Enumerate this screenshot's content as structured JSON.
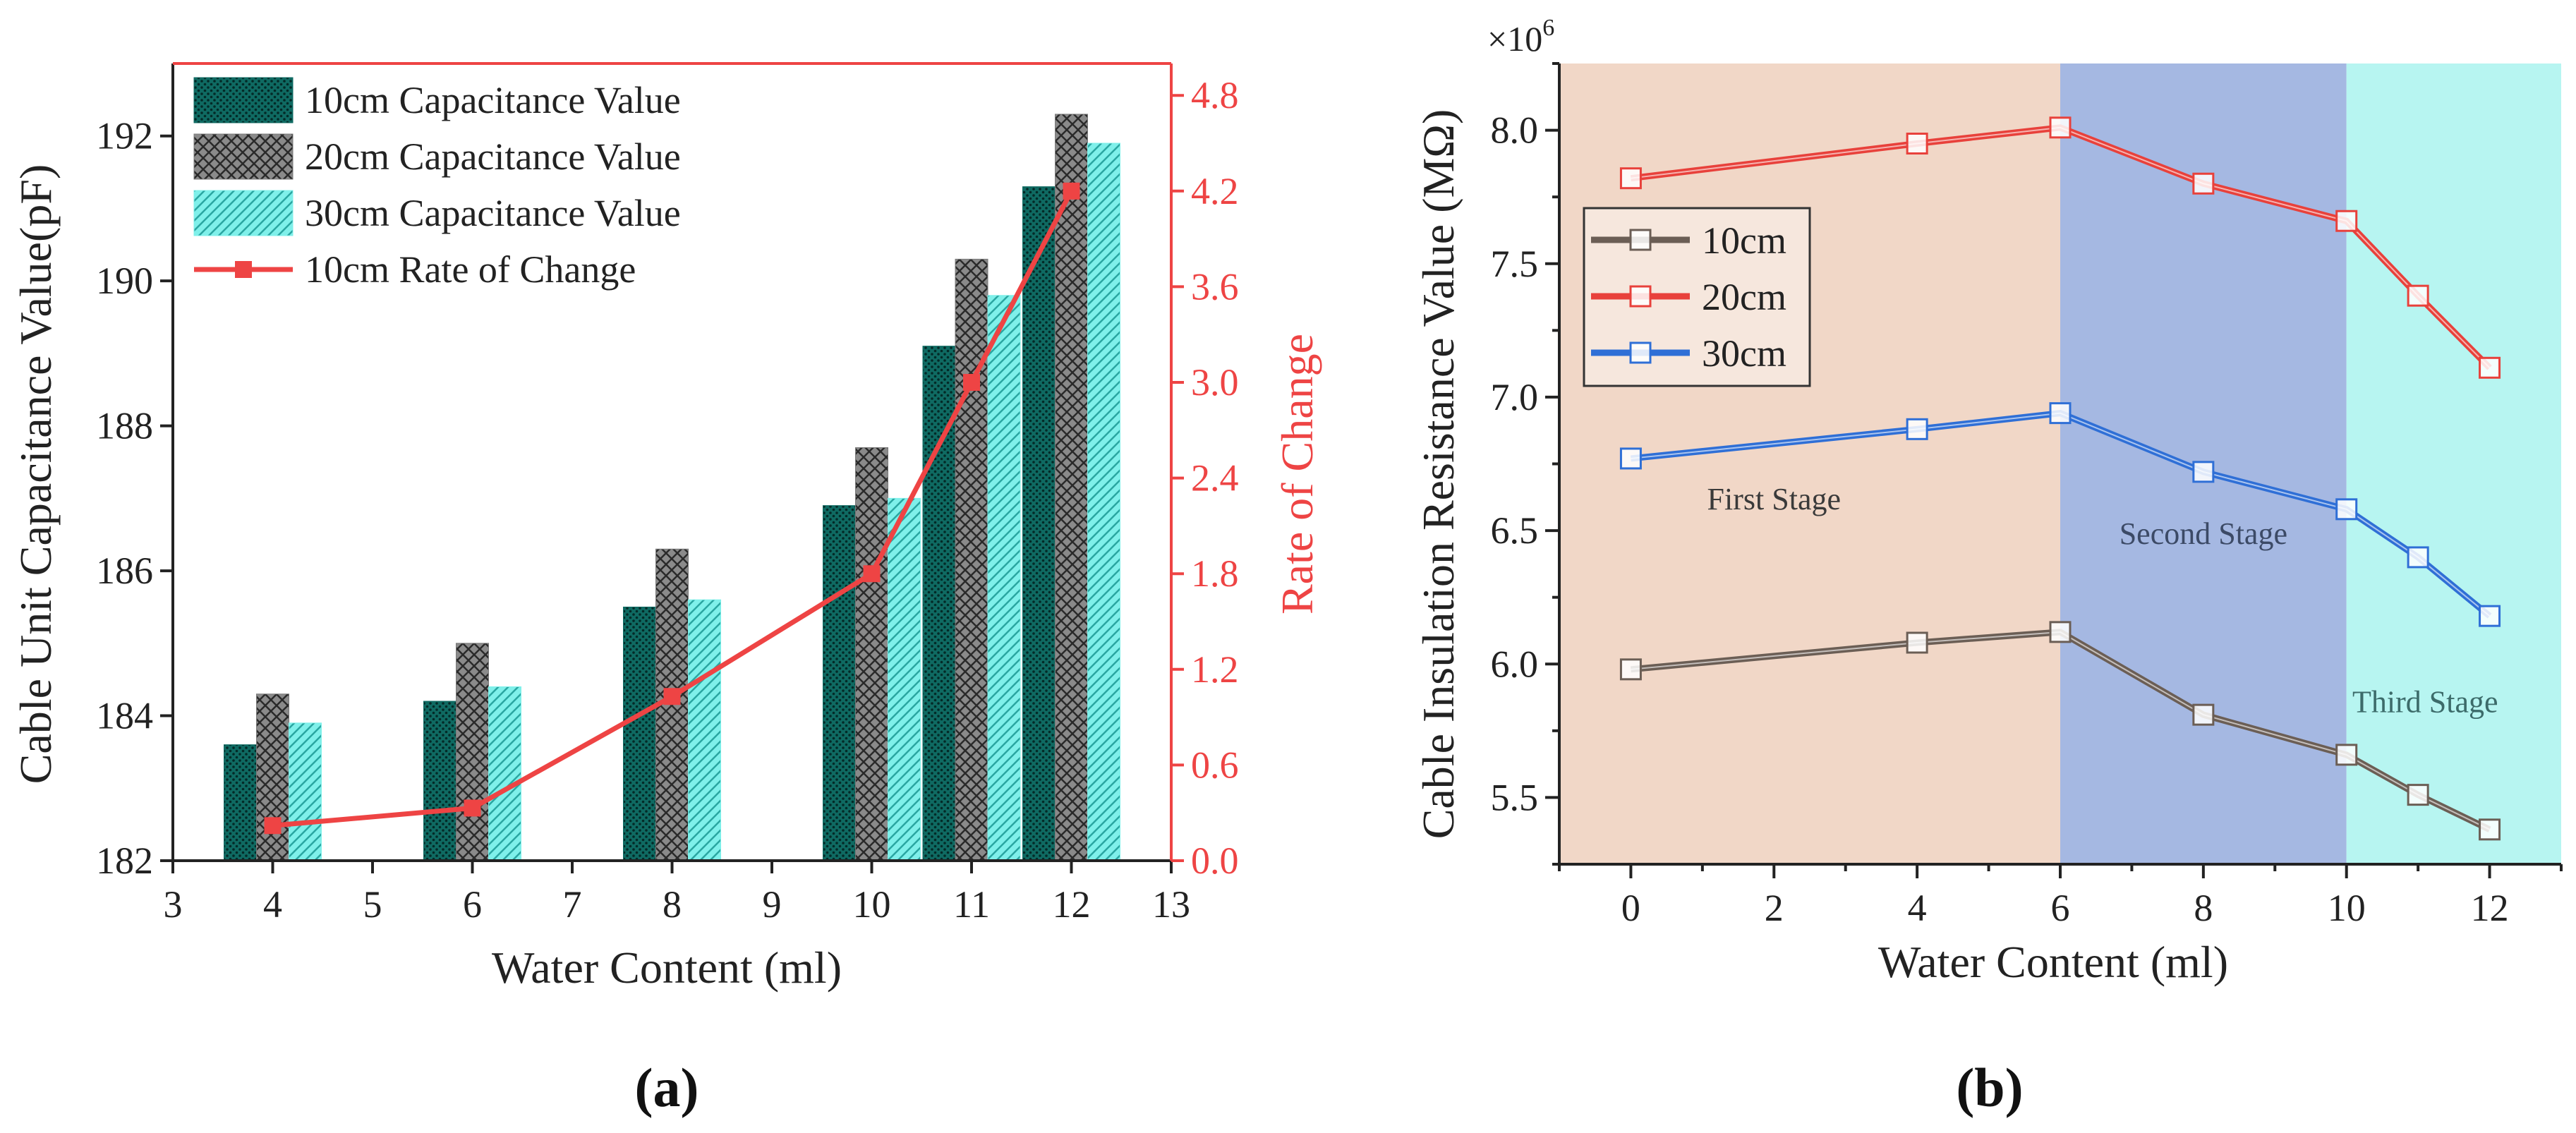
{
  "colors": {
    "bar_10cm": "#0f6a62",
    "bar_20cm": "#7a7a7a",
    "bar_30cm": "#7ff0ea",
    "rate_line": "#ee4444",
    "axis": "#222222",
    "line_10cm": "#6b5e55",
    "line_20cm": "#e8413b",
    "line_30cm": "#2f6fd6",
    "stage1_bg": "#f1d7c7",
    "stage2_bg": "#a5b8e2",
    "stage3_bg": "#b7f5f1"
  },
  "chart_data": [
    {
      "id": "a",
      "type": "bar",
      "caption": "(a)",
      "xlabel": "Water Content (ml)",
      "ylabel": "Cable Unit Capacitance Value(pF)",
      "y2label": "Rate of Change",
      "xlim": [
        3,
        13
      ],
      "xticks": [
        "3",
        "4",
        "5",
        "6",
        "7",
        "8",
        "9",
        "10",
        "11",
        "12",
        "13"
      ],
      "ylim": [
        182,
        193
      ],
      "yticks": [
        "182",
        "184",
        "186",
        "188",
        "190",
        "192"
      ],
      "y2lim": [
        0,
        5.0
      ],
      "y2ticks": [
        "0.0",
        "0.6",
        "1.2",
        "1.8",
        "2.4",
        "3.0",
        "3.6",
        "4.2",
        "4.8"
      ],
      "x": [
        4,
        6,
        8,
        10,
        11,
        12
      ],
      "series": [
        {
          "name": "10cm Capacitance Value",
          "values": [
            183.6,
            184.2,
            185.5,
            186.9,
            189.1,
            191.3
          ]
        },
        {
          "name": "20cm Capacitance Value",
          "values": [
            184.3,
            185.0,
            186.3,
            187.7,
            190.3,
            192.3
          ]
        },
        {
          "name": "30cm Capacitance Value",
          "values": [
            183.9,
            184.4,
            185.6,
            187.0,
            189.8,
            191.9
          ]
        }
      ],
      "rate_series": {
        "name": "10cm Rate of Change",
        "axis": "right",
        "values": [
          0.22,
          0.33,
          1.03,
          1.8,
          3.0,
          4.2
        ]
      },
      "legend": "top-left"
    },
    {
      "id": "b",
      "type": "line",
      "caption": "(b)",
      "xlabel": "Water Content (ml)",
      "ylabel": "Cable Insulation Resistance Value (MΩ)",
      "y_multiplier": "×10",
      "y_multiplier_exp": "6",
      "xlim": [
        -1,
        13
      ],
      "xticks": [
        "0",
        "2",
        "4",
        "6",
        "8",
        "10",
        "12"
      ],
      "ylim": [
        5.25,
        8.25
      ],
      "yticks": [
        "5.5",
        "6.0",
        "6.5",
        "7.0",
        "7.5",
        "8.0"
      ],
      "x": [
        0,
        4,
        6,
        8,
        10,
        11,
        12
      ],
      "series": [
        {
          "name": "10cm",
          "values": [
            5.98,
            6.08,
            6.12,
            5.81,
            5.66,
            5.51,
            5.38
          ]
        },
        {
          "name": "20cm",
          "values": [
            7.82,
            7.95,
            8.01,
            7.8,
            7.66,
            7.38,
            7.11
          ]
        },
        {
          "name": "30cm",
          "values": [
            6.77,
            6.88,
            6.94,
            6.72,
            6.58,
            6.4,
            6.18
          ]
        }
      ],
      "stages": [
        {
          "label": "First Stage",
          "from": -1,
          "to": 6
        },
        {
          "label": "Second Stage",
          "from": 6,
          "to": 10
        },
        {
          "label": "Third Stage",
          "from": 10,
          "to": 13
        }
      ],
      "legend": "left"
    }
  ]
}
